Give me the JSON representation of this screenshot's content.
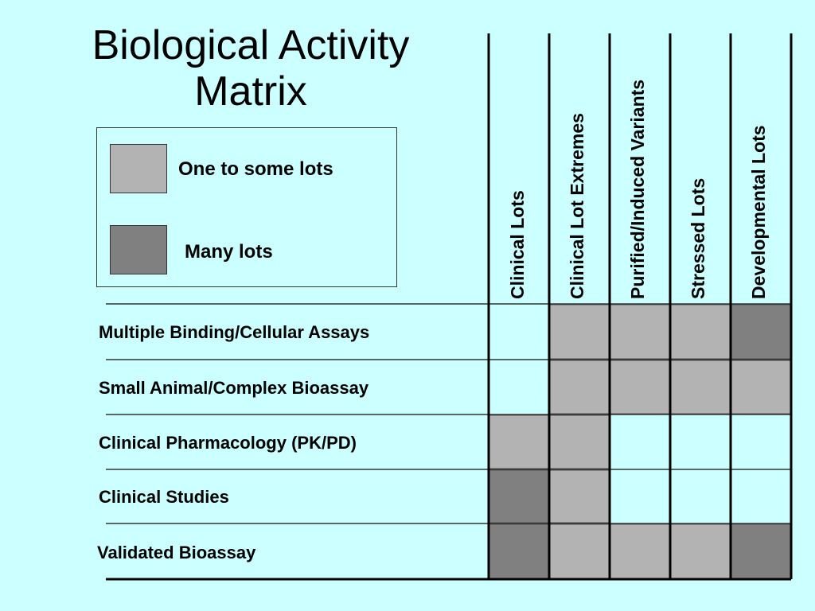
{
  "title_line1": "Biological Activity",
  "title_line2": "Matrix",
  "legend": {
    "items": [
      {
        "label": "One to some lots",
        "color": "#b3b3b3"
      },
      {
        "label": "Many lots",
        "color": "#808080"
      }
    ]
  },
  "columns": [
    "Clinical Lots",
    "Clinical Lot  Extremes",
    "Purified/Induced Variants",
    "Stressed Lots",
    "Developmental Lots"
  ],
  "rows": [
    {
      "label": "Multiple Binding/Cellular Assays",
      "cells": [
        "none",
        "some",
        "some",
        "some",
        "many"
      ]
    },
    {
      "label": "Small Animal/Complex Bioassay",
      "cells": [
        "none",
        "some",
        "some",
        "some",
        "some"
      ]
    },
    {
      "label": "Clinical Pharmacology (PK/PD)",
      "cells": [
        "some",
        "some",
        "none",
        "none",
        "none"
      ]
    },
    {
      "label": "Clinical Studies",
      "cells": [
        "many",
        "some",
        "none",
        "none",
        "none"
      ]
    },
    {
      "label": "Validated Bioassay",
      "cells": [
        "many",
        "some",
        "some",
        "some",
        "many"
      ]
    }
  ],
  "colors": {
    "some": "#b3b3b3",
    "many": "#808080",
    "background": "#ccffff"
  }
}
